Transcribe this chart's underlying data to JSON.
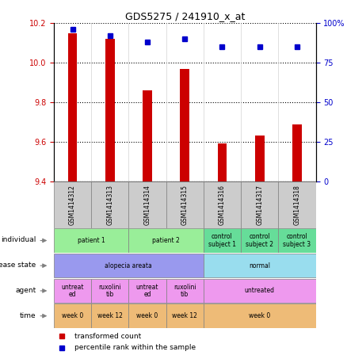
{
  "title": "GDS5275 / 241910_x_at",
  "samples": [
    "GSM1414312",
    "GSM1414313",
    "GSM1414314",
    "GSM1414315",
    "GSM1414316",
    "GSM1414317",
    "GSM1414318"
  ],
  "red_values": [
    10.15,
    10.12,
    9.86,
    9.97,
    9.59,
    9.63,
    9.69
  ],
  "blue_values": [
    96,
    92,
    88,
    90,
    85,
    85,
    85
  ],
  "ylim_left": [
    9.4,
    10.2
  ],
  "ylim_right": [
    0,
    100
  ],
  "yticks_left": [
    9.4,
    9.6,
    9.8,
    10.0,
    10.2
  ],
  "yticks_right": [
    0,
    25,
    50,
    75,
    100
  ],
  "ytick_labels_right": [
    "0",
    "25",
    "50",
    "75",
    "100%"
  ],
  "bar_color": "#cc0000",
  "dot_color": "#0000cc",
  "sample_col_color": "#cccccc",
  "legend_red": "transformed count",
  "legend_blue": "percentile rank within the sample",
  "annotation_rows": [
    {
      "label": "individual",
      "groups": [
        {
          "text": "patient 1",
          "span": [
            0,
            2
          ],
          "color": "#99ee99"
        },
        {
          "text": "patient 2",
          "span": [
            2,
            4
          ],
          "color": "#99ee99"
        },
        {
          "text": "control\nsubject 1",
          "span": [
            4,
            5
          ],
          "color": "#66dd99"
        },
        {
          "text": "control\nsubject 2",
          "span": [
            5,
            6
          ],
          "color": "#66dd99"
        },
        {
          "text": "control\nsubject 3",
          "span": [
            6,
            7
          ],
          "color": "#66dd99"
        }
      ]
    },
    {
      "label": "disease state",
      "groups": [
        {
          "text": "alopecia areata",
          "span": [
            0,
            4
          ],
          "color": "#9999ee"
        },
        {
          "text": "normal",
          "span": [
            4,
            7
          ],
          "color": "#99ddee"
        }
      ]
    },
    {
      "label": "agent",
      "groups": [
        {
          "text": "untreat\ned",
          "span": [
            0,
            1
          ],
          "color": "#ee99ee"
        },
        {
          "text": "ruxolini\ntib",
          "span": [
            1,
            2
          ],
          "color": "#ee99ee"
        },
        {
          "text": "untreat\ned",
          "span": [
            2,
            3
          ],
          "color": "#ee99ee"
        },
        {
          "text": "ruxolini\ntib",
          "span": [
            3,
            4
          ],
          "color": "#ee99ee"
        },
        {
          "text": "untreated",
          "span": [
            4,
            7
          ],
          "color": "#ee99ee"
        }
      ]
    },
    {
      "label": "time",
      "groups": [
        {
          "text": "week 0",
          "span": [
            0,
            1
          ],
          "color": "#eebb77"
        },
        {
          "text": "week 12",
          "span": [
            1,
            2
          ],
          "color": "#eebb77"
        },
        {
          "text": "week 0",
          "span": [
            2,
            3
          ],
          "color": "#eebb77"
        },
        {
          "text": "week 12",
          "span": [
            3,
            4
          ],
          "color": "#eebb77"
        },
        {
          "text": "week 0",
          "span": [
            4,
            7
          ],
          "color": "#eebb77"
        }
      ]
    }
  ]
}
